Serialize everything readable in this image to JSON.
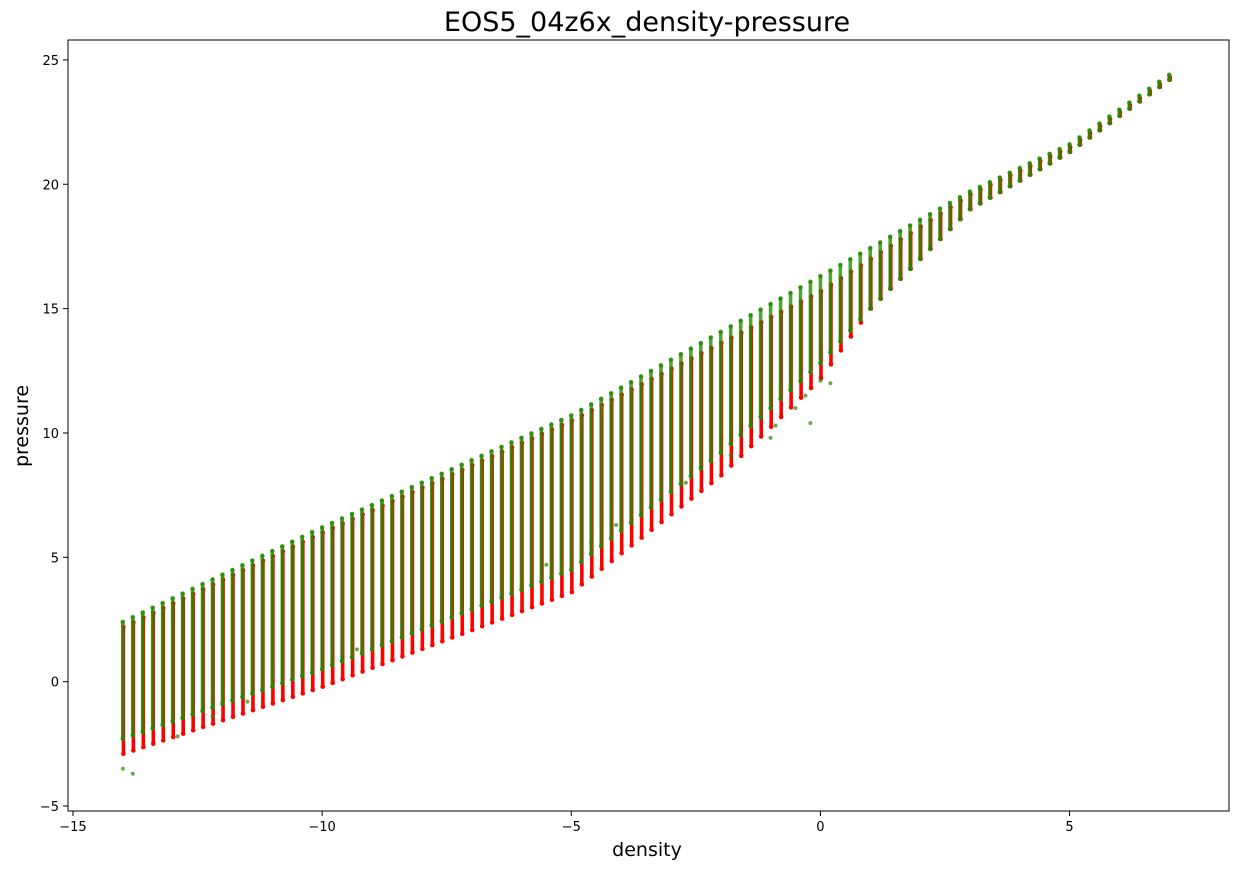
{
  "chart_data": {
    "type": "scatter",
    "title": "EOS5_04z6x_density-pressure",
    "xlabel": "density",
    "ylabel": "pressure",
    "xlim": [
      -15.1,
      8.2
    ],
    "ylim": [
      -5.2,
      25.8
    ],
    "x_ticks": [
      -15,
      -10,
      -5,
      0,
      5
    ],
    "y_ticks": [
      -5,
      0,
      5,
      10,
      15,
      20,
      25
    ],
    "x_tick_labels": [
      "−15",
      "−10",
      "−5",
      "0",
      "5"
    ],
    "y_tick_labels": [
      "−5",
      "0",
      "5",
      "10",
      "15",
      "20",
      "25"
    ],
    "grid": false,
    "legend": "none",
    "series": [
      {
        "color": "#ff0000",
        "structure": "vertical columns at density step 0.2 from -14 to 7",
        "x_range": [
          -14,
          7
        ],
        "column_x_step": 0.2,
        "lower_edge": [
          [
            -14,
            -2.9
          ],
          [
            -10,
            -0.2
          ],
          [
            -5,
            3.6
          ],
          [
            -2,
            8.3
          ],
          [
            0,
            12.2
          ],
          [
            1,
            15.0
          ],
          [
            3,
            19.0
          ],
          [
            5,
            21.3
          ],
          [
            7,
            24.2
          ]
        ],
        "upper_edge": [
          [
            -14,
            2.2
          ],
          [
            -10,
            6.0
          ],
          [
            -5,
            10.5
          ],
          [
            0,
            15.7
          ],
          [
            3,
            19.6
          ],
          [
            5,
            21.5
          ],
          [
            7,
            24.3
          ]
        ]
      },
      {
        "color": "#228b00",
        "structure": "vertical columns at density step 0.2 from -14 to 7, semi-transparent, drawn over red",
        "x_range": [
          -14,
          7
        ],
        "column_x_step": 0.2,
        "lower_edge": [
          [
            -14,
            -2.3
          ],
          [
            -10,
            0.5
          ],
          [
            -5,
            4.5
          ],
          [
            -2,
            9.2
          ],
          [
            0,
            12.8
          ],
          [
            1,
            15.0
          ],
          [
            3,
            19.0
          ],
          [
            5,
            21.3
          ],
          [
            7,
            24.2
          ]
        ],
        "upper_edge": [
          [
            -14,
            2.4
          ],
          [
            -10,
            6.2
          ],
          [
            -5,
            10.7
          ],
          [
            0,
            16.3
          ],
          [
            3,
            19.7
          ],
          [
            5,
            21.6
          ],
          [
            7,
            24.4
          ]
        ],
        "outliers": [
          [
            -14.0,
            -3.5
          ],
          [
            -13.8,
            -3.7
          ],
          [
            -12.9,
            -2.2
          ],
          [
            -12.2,
            -1.4
          ],
          [
            -11.5,
            -0.8
          ],
          [
            -9.6,
            0.8
          ],
          [
            -9.3,
            1.3
          ],
          [
            -5.5,
            4.7
          ],
          [
            -4.6,
            5.6
          ],
          [
            -4.1,
            6.3
          ],
          [
            -2.7,
            8.0
          ],
          [
            -1.8,
            9.1
          ],
          [
            -1.0,
            9.8
          ],
          [
            -0.9,
            10.3
          ],
          [
            -0.5,
            11.0
          ],
          [
            -0.3,
            11.5
          ],
          [
            -0.2,
            10.4
          ],
          [
            0.0,
            12.1
          ],
          [
            0.2,
            12.0
          ]
        ]
      }
    ]
  }
}
